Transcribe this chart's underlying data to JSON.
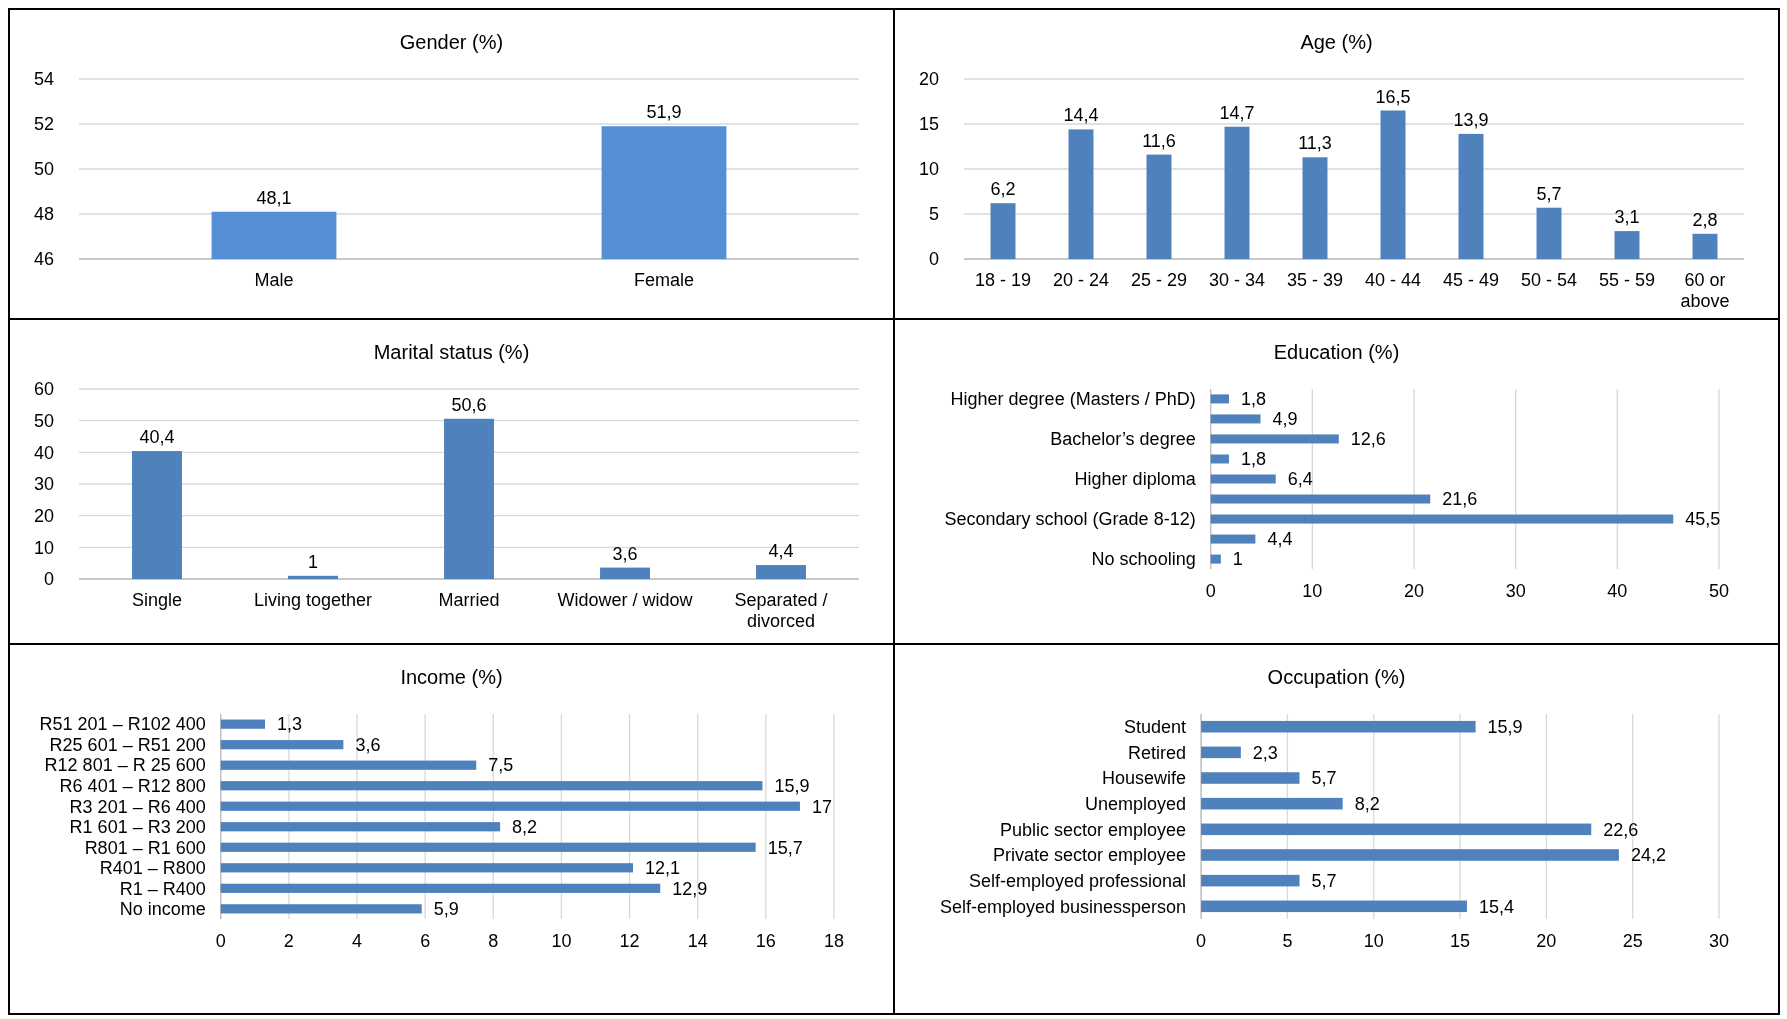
{
  "chart_data": [
    {
      "type": "bar",
      "title": "Gender (%)",
      "categories": [
        "Male",
        "Female"
      ],
      "values": [
        48.1,
        51.9
      ],
      "value_labels": [
        "48,1",
        "51,9"
      ],
      "color": "#558ed5",
      "ylim": [
        46,
        54
      ],
      "yticks": [
        46,
        48,
        50,
        52,
        54
      ],
      "grid": "y"
    },
    {
      "type": "bar",
      "title": "Age (%)",
      "categories": [
        "18 - 19",
        "20 - 24",
        "25 - 29",
        "30 - 34",
        "35 - 39",
        "40 - 44",
        "45 - 49",
        "50 - 54",
        "55 - 59",
        "60 or above"
      ],
      "values": [
        6.2,
        14.4,
        11.6,
        14.7,
        11.3,
        16.5,
        13.9,
        5.7,
        3.1,
        2.8
      ],
      "value_labels": [
        "6,2",
        "14,4",
        "11,6",
        "14,7",
        "11,3",
        "16,5",
        "13,9",
        "5,7",
        "3,1",
        "2,8"
      ],
      "color": "#4f81bd",
      "ylim": [
        0,
        20
      ],
      "yticks": [
        0,
        5,
        10,
        15,
        20
      ],
      "grid": "y"
    },
    {
      "type": "bar",
      "title": "Marital status (%)",
      "categories": [
        "Single",
        "Living together",
        "Married",
        "Widower / widow",
        "Separated / divorced"
      ],
      "values": [
        40.4,
        1,
        50.6,
        3.6,
        4.4
      ],
      "value_labels": [
        "40,4",
        "1",
        "50,6",
        "3,6",
        "4,4"
      ],
      "color": "#4f81bd",
      "ylim": [
        0,
        60
      ],
      "yticks": [
        0,
        10,
        20,
        30,
        40,
        50,
        60
      ],
      "grid": "y"
    },
    {
      "type": "bar",
      "orientation": "horizontal",
      "title": "Education (%)",
      "categories": [
        "Higher degree (Masters / PhD)",
        null,
        "Bachelor’s degree",
        null,
        "Higher diploma",
        null,
        "Secondary school (Grade 8-12)",
        null,
        "No schooling"
      ],
      "values": [
        1.8,
        4.9,
        12.6,
        1.8,
        6.4,
        21.6,
        45.5,
        4.4,
        1
      ],
      "value_labels": [
        "1,8",
        "4,9",
        "12,6",
        "1,8",
        "6,4",
        "21,6",
        "45,5",
        "4,4",
        "1"
      ],
      "color": "#4f81bd",
      "xlim": [
        0,
        50
      ],
      "xticks": [
        0,
        10,
        20,
        30,
        40,
        50
      ],
      "grid": "x"
    },
    {
      "type": "bar",
      "orientation": "horizontal",
      "title": "Income (%)",
      "categories": [
        "R51 201 – R102 400",
        "R25 601 – R51 200",
        "R12 801 – R 25 600",
        "R6 401 – R12 800",
        "R3 201 – R6 400",
        "R1 601 – R3 200",
        "R801 – R1 600",
        "R401 – R800",
        "R1 – R400",
        "No income"
      ],
      "values": [
        1.3,
        3.6,
        7.5,
        15.9,
        17,
        8.2,
        15.7,
        12.1,
        12.9,
        5.9
      ],
      "value_labels": [
        "1,3",
        "3,6",
        "7,5",
        "15,9",
        "17",
        "8,2",
        "15,7",
        "12,1",
        "12,9",
        "5,9"
      ],
      "color": "#4f81bd",
      "xlim": [
        0,
        18
      ],
      "xticks": [
        0,
        2,
        4,
        6,
        8,
        10,
        12,
        14,
        16,
        18
      ],
      "grid": "x"
    },
    {
      "type": "bar",
      "orientation": "horizontal",
      "title": "Occupation (%)",
      "categories": [
        "Student",
        "Retired",
        "Housewife",
        "Unemployed",
        "Public sector employee",
        "Private sector employee",
        "Self-employed professional",
        "Self-employed businessperson"
      ],
      "values": [
        15.9,
        2.3,
        5.7,
        8.2,
        22.6,
        24.2,
        5.7,
        15.4
      ],
      "value_labels": [
        "15,9",
        "2,3",
        "5,7",
        "8,2",
        "22,6",
        "24,2",
        "5,7",
        "15,4"
      ],
      "color": "#4f81bd",
      "xlim": [
        0,
        30
      ],
      "xticks": [
        0,
        5,
        10,
        15,
        20,
        25,
        30
      ],
      "grid": "x"
    }
  ]
}
